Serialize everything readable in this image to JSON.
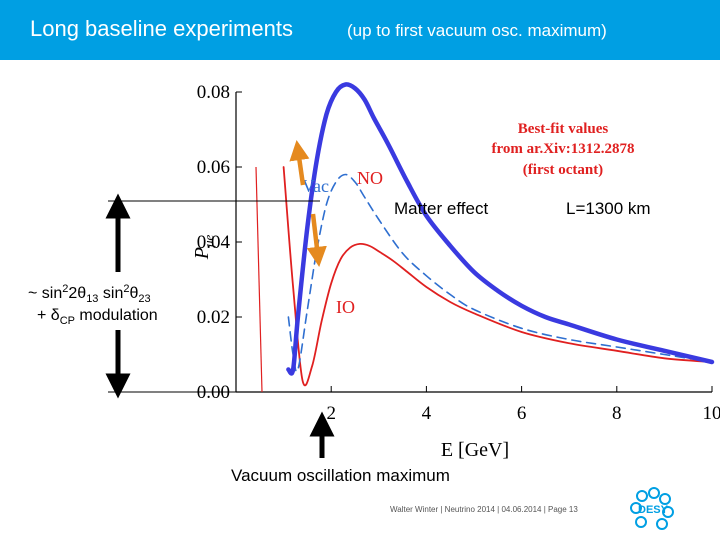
{
  "slide": {
    "title": "Long baseline experiments",
    "title_sub": "(up to first vacuum osc. maximum)",
    "footer": "Walter Winter | Neutrino 2014 | 04.06.2014 | Page 13",
    "logo_text": "DESY"
  },
  "colors": {
    "title_bar": "#009fe3",
    "no_curve": "#3a3ae0",
    "vac_curve": "#2f6fd0",
    "io_curve": "#e02020",
    "red_line": "#e02020",
    "arrow_orange": "#e58a1f"
  },
  "annotations": {
    "bestfit_line1": "Best-fit values",
    "bestfit_line2": "from ar.Xiv:1312.2878",
    "bestfit_line3": "(first octant)",
    "matter_effect": "Matter effect",
    "baseline": "L=1300 km",
    "modulation_line1_a": "~ sin",
    "modulation_line1_sup1": "2",
    "modulation_line1_b": "2",
    "modulation_line1_theta1": "θ",
    "modulation_line1_sub1": "13",
    "modulation_line1_c": " sin",
    "modulation_line1_sup2": "2",
    "modulation_line1_theta2": "θ",
    "modulation_line1_sub2": "23",
    "modulation_line2_a": "+ δ",
    "modulation_line2_sub": "CP",
    "modulation_line2_b": " modulation",
    "vacuum_max": "Vacuum oscillation maximum"
  },
  "chart_data": {
    "type": "line",
    "xlabel": "E [GeV]",
    "ylabel_main": "P",
    "ylabel_sub": "μe",
    "xlim": [
      0.0,
      10.0
    ],
    "ylim": [
      0.0,
      0.08
    ],
    "xticks": [
      2,
      4,
      6,
      8,
      10
    ],
    "yticks": [
      0.0,
      0.02,
      0.04,
      0.06,
      0.08
    ],
    "ytick_labels": [
      "0.00",
      "0.02",
      "0.04",
      "0.06",
      "0.08"
    ],
    "grid": false,
    "series": [
      {
        "name": "NO",
        "style": "solid-thick",
        "x": [
          1.1,
          1.2,
          1.3,
          1.5,
          1.7,
          1.9,
          2.1,
          2.3,
          2.5,
          2.7,
          2.9,
          3.2,
          3.6,
          4.0,
          4.5,
          5.0,
          5.5,
          6.0,
          6.5,
          7.0,
          8.0,
          9.0,
          10.0
        ],
        "values": [
          0.006,
          0.006,
          0.02,
          0.044,
          0.062,
          0.074,
          0.08,
          0.082,
          0.081,
          0.078,
          0.073,
          0.066,
          0.056,
          0.047,
          0.039,
          0.032,
          0.027,
          0.023,
          0.02,
          0.018,
          0.014,
          0.011,
          0.008
        ]
      },
      {
        "name": "Vac",
        "style": "dashed",
        "x": [
          1.1,
          1.2,
          1.3,
          1.5,
          1.7,
          1.9,
          2.1,
          2.3,
          2.5,
          2.7,
          3.0,
          3.5,
          4.0,
          4.5,
          5.0,
          6.0,
          7.0,
          8.0,
          9.0,
          10.0
        ],
        "values": [
          0.02,
          0.01,
          0.006,
          0.022,
          0.038,
          0.05,
          0.056,
          0.058,
          0.056,
          0.052,
          0.046,
          0.037,
          0.031,
          0.026,
          0.022,
          0.017,
          0.014,
          0.012,
          0.01,
          0.008
        ]
      },
      {
        "name": "IO",
        "style": "solid",
        "x": [
          1.0,
          1.2,
          1.4,
          1.6,
          1.8,
          2.0,
          2.2,
          2.4,
          2.6,
          2.8,
          3.0,
          3.3,
          3.6,
          4.0,
          4.5,
          5.0,
          6.0,
          7.0,
          8.0,
          9.0,
          10.0
        ],
        "values": [
          0.06,
          0.028,
          0.003,
          0.007,
          0.019,
          0.029,
          0.0355,
          0.0385,
          0.0395,
          0.039,
          0.0375,
          0.035,
          0.032,
          0.028,
          0.024,
          0.021,
          0.016,
          0.013,
          0.011,
          0.009,
          0.008
        ]
      }
    ],
    "curve_labels": [
      "NO",
      "Vac",
      "IO"
    ]
  }
}
